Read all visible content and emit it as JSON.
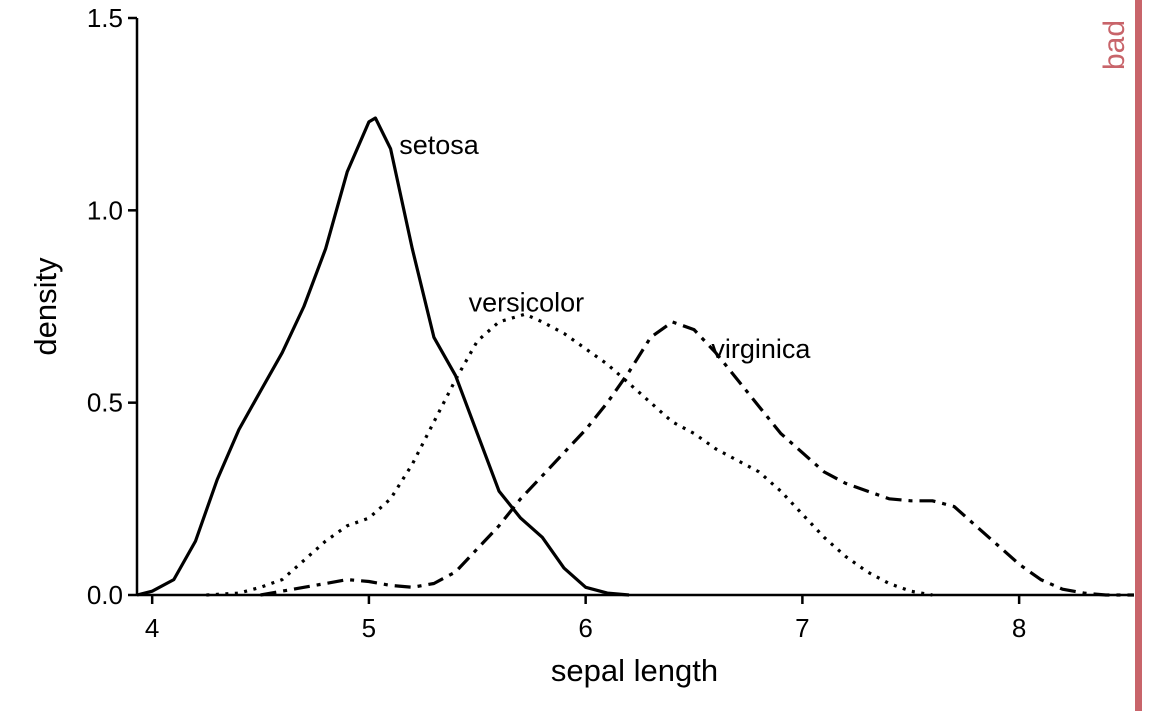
{
  "chart_data": {
    "type": "line",
    "title": "",
    "xlabel": "sepal length",
    "ylabel": "density",
    "xlim": [
      3.93,
      8.53
    ],
    "ylim": [
      0,
      1.5
    ],
    "xticks": [
      4,
      5,
      6,
      7,
      8
    ],
    "xtick_labels": [
      "4",
      "5",
      "6",
      "7",
      "8"
    ],
    "yticks": [
      0,
      0.5,
      1.0,
      1.5
    ],
    "ytick_labels": [
      "0.0",
      "0.5",
      "1.0",
      "1.5"
    ],
    "grid": false,
    "legend": "direct labels",
    "series": [
      {
        "name": "setosa",
        "dash": "solid",
        "x": [
          3.93,
          4.0,
          4.1,
          4.2,
          4.3,
          4.4,
          4.5,
          4.6,
          4.7,
          4.8,
          4.9,
          5.0,
          5.03,
          5.1,
          5.2,
          5.3,
          5.4,
          5.5,
          5.6,
          5.7,
          5.8,
          5.9,
          6.0,
          6.1,
          6.2
        ],
        "y": [
          0.0,
          0.01,
          0.04,
          0.14,
          0.3,
          0.43,
          0.53,
          0.63,
          0.75,
          0.9,
          1.1,
          1.23,
          1.24,
          1.16,
          0.9,
          0.67,
          0.57,
          0.42,
          0.27,
          0.2,
          0.15,
          0.07,
          0.02,
          0.005,
          0.0
        ]
      },
      {
        "name": "versicolor",
        "dash": "dotted",
        "x": [
          4.25,
          4.4,
          4.5,
          4.6,
          4.7,
          4.8,
          4.9,
          5.0,
          5.1,
          5.2,
          5.3,
          5.4,
          5.5,
          5.6,
          5.72,
          5.8,
          5.9,
          6.0,
          6.1,
          6.2,
          6.3,
          6.4,
          6.5,
          6.6,
          6.7,
          6.8,
          6.9,
          7.0,
          7.1,
          7.2,
          7.3,
          7.4,
          7.5,
          7.6
        ],
        "y": [
          0.0,
          0.005,
          0.02,
          0.04,
          0.09,
          0.14,
          0.18,
          0.2,
          0.25,
          0.34,
          0.45,
          0.56,
          0.66,
          0.71,
          0.73,
          0.71,
          0.68,
          0.64,
          0.6,
          0.55,
          0.5,
          0.45,
          0.42,
          0.38,
          0.35,
          0.32,
          0.27,
          0.21,
          0.15,
          0.1,
          0.06,
          0.03,
          0.01,
          0.0
        ]
      },
      {
        "name": "virginica",
        "dash": "dashdot",
        "x": [
          4.5,
          4.7,
          4.8,
          4.9,
          5.0,
          5.1,
          5.2,
          5.3,
          5.4,
          5.5,
          5.6,
          5.7,
          5.8,
          5.9,
          6.0,
          6.1,
          6.2,
          6.3,
          6.4,
          6.5,
          6.6,
          6.7,
          6.8,
          6.9,
          7.0,
          7.1,
          7.2,
          7.3,
          7.4,
          7.5,
          7.6,
          7.7,
          7.8,
          7.9,
          8.0,
          8.1,
          8.2,
          8.3,
          8.4,
          8.53
        ],
        "y": [
          0.0,
          0.02,
          0.03,
          0.04,
          0.035,
          0.025,
          0.02,
          0.03,
          0.06,
          0.12,
          0.18,
          0.25,
          0.31,
          0.37,
          0.43,
          0.5,
          0.58,
          0.67,
          0.71,
          0.69,
          0.63,
          0.56,
          0.49,
          0.42,
          0.37,
          0.32,
          0.29,
          0.27,
          0.25,
          0.245,
          0.245,
          0.23,
          0.18,
          0.13,
          0.08,
          0.04,
          0.015,
          0.005,
          0.0,
          0.0
        ]
      }
    ],
    "annotations": [
      {
        "series": "setosa",
        "text": "setosa",
        "x": 5.14,
        "y": 1.17
      },
      {
        "series": "versicolor",
        "text": "versicolor",
        "x": 5.46,
        "y": 0.76
      },
      {
        "series": "virginica",
        "text": "virginica",
        "x": 6.58,
        "y": 0.64
      }
    ]
  },
  "badge": {
    "text": "bad",
    "color": "#c8646a"
  }
}
